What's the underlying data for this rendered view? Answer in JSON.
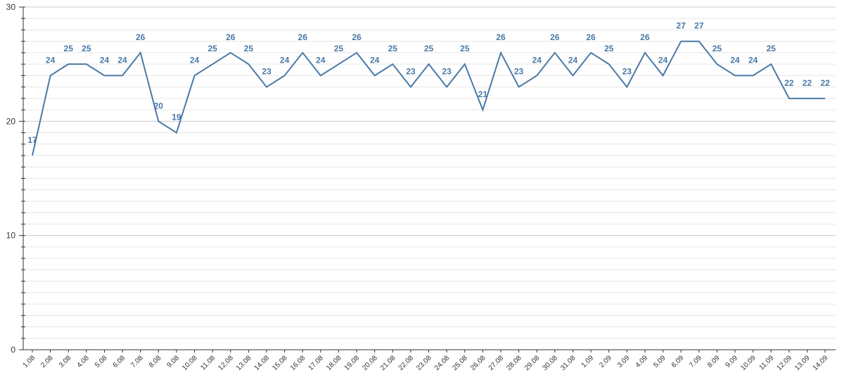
{
  "chart_data": {
    "type": "line",
    "title": "",
    "xlabel": "",
    "ylabel": "",
    "ylim": [
      0,
      30
    ],
    "yticks": [
      0,
      10,
      20,
      30
    ],
    "grid": true,
    "colors": {
      "line": "#4a79a8",
      "grid": "#e6e6e6",
      "axis": "#333333"
    },
    "categories": [
      "1.08",
      "2.08",
      "3.08",
      "4.08",
      "5.08",
      "6.08",
      "7.08",
      "8.08",
      "9.08",
      "10.08",
      "11.08",
      "12.08",
      "13.08",
      "14.08",
      "15.08",
      "16.08",
      "17.08",
      "18.08",
      "19.08",
      "20.08",
      "21.08",
      "22.08",
      "23.08",
      "24.08",
      "25.08",
      "26.08",
      "27.08",
      "28.08",
      "29.08",
      "30.08",
      "31.08",
      "1.09",
      "2.09",
      "3.09",
      "4.09",
      "5.09",
      "6.09",
      "7.09",
      "8.09",
      "9.09",
      "10.09",
      "11.09",
      "12.09",
      "13.09",
      "14.09"
    ],
    "series": [
      {
        "values": [
          17,
          24,
          25,
          25,
          24,
          24,
          26,
          20,
          19,
          24,
          25,
          26,
          25,
          23,
          24,
          26,
          24,
          25,
          26,
          24,
          25,
          23,
          25,
          23,
          25,
          21,
          26,
          23,
          24,
          26,
          24,
          26,
          25,
          23,
          26,
          24,
          27,
          27,
          25,
          24,
          24,
          25,
          22,
          22,
          22
        ]
      }
    ]
  }
}
